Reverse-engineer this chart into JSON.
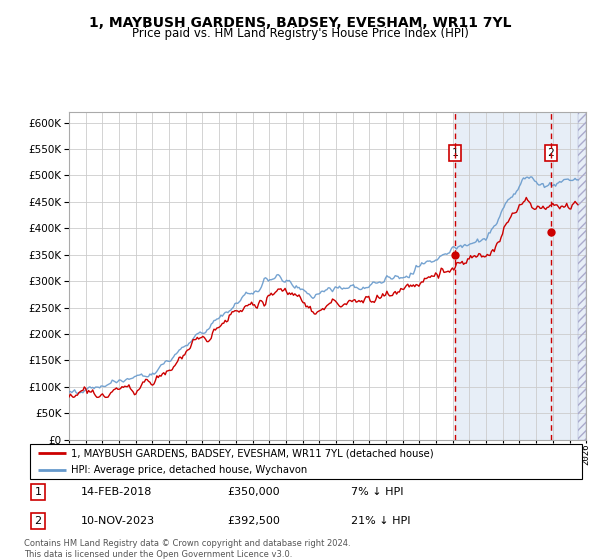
{
  "title": "1, MAYBUSH GARDENS, BADSEY, EVESHAM, WR11 7YL",
  "subtitle": "Price paid vs. HM Land Registry's House Price Index (HPI)",
  "legend_line1": "1, MAYBUSH GARDENS, BADSEY, EVESHAM, WR11 7YL (detached house)",
  "legend_line2": "HPI: Average price, detached house, Wychavon",
  "annotation1_label": "1",
  "annotation1_date": "14-FEB-2018",
  "annotation1_price": "£350,000",
  "annotation1_hpi": "7% ↓ HPI",
  "annotation2_label": "2",
  "annotation2_date": "10-NOV-2023",
  "annotation2_price": "£392,500",
  "annotation2_hpi": "21% ↓ HPI",
  "footnote": "Contains HM Land Registry data © Crown copyright and database right 2024.\nThis data is licensed under the Open Government Licence v3.0.",
  "hpi_color": "#6699cc",
  "price_color": "#cc0000",
  "marker1_year": 2018.12,
  "marker1_price": 350000,
  "marker2_year": 2023.87,
  "marker2_price": 392500,
  "ylim_min": 0,
  "ylim_max": 620000,
  "xlim_min": 1995,
  "xlim_max": 2026,
  "shade_start": 2018.12,
  "background_shade": "#dde8f5",
  "grid_color": "#cccccc",
  "hatch_start": 2025.5
}
